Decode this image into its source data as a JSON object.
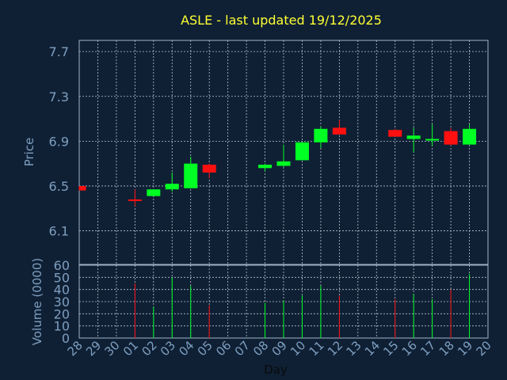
{
  "chart_data": {
    "type": "candlestick",
    "title": "ASLE - last updated 19/12/2025",
    "xlabel": "Day",
    "price_axis": {
      "label": "Price",
      "ylim": [
        5.8,
        7.8
      ],
      "ticks": [
        "6.1",
        "6.5",
        "6.9",
        "7.3",
        "7.7"
      ]
    },
    "volume_axis": {
      "label": "Volume (0000)",
      "ylim": [
        0,
        60
      ],
      "ticks": [
        "0",
        "10",
        "20",
        "30",
        "40",
        "50",
        "60"
      ]
    },
    "days": [
      "28",
      "29",
      "30",
      "01",
      "02",
      "03",
      "04",
      "05",
      "06",
      "07",
      "08",
      "09",
      "10",
      "11",
      "12",
      "13",
      "14",
      "15",
      "16",
      "17",
      "18",
      "19",
      "20"
    ],
    "candles": [
      {
        "day": "28",
        "open": 6.5,
        "close": 6.46,
        "high": 6.5,
        "low": 6.46,
        "volume": null
      },
      {
        "day": "01",
        "open": 6.38,
        "close": 6.37,
        "high": 6.47,
        "low": 6.32,
        "volume": 45
      },
      {
        "day": "02",
        "open": 6.41,
        "close": 6.47,
        "high": 6.47,
        "low": 6.41,
        "volume": 26
      },
      {
        "day": "03",
        "open": 6.47,
        "close": 6.52,
        "high": 6.62,
        "low": 6.45,
        "volume": 50
      },
      {
        "day": "04",
        "open": 6.48,
        "close": 6.7,
        "high": 6.76,
        "low": 6.48,
        "volume": 43
      },
      {
        "day": "05",
        "open": 6.69,
        "close": 6.62,
        "high": 6.7,
        "low": 6.57,
        "volume": 27
      },
      {
        "day": "08",
        "open": 6.66,
        "close": 6.69,
        "high": 6.7,
        "low": 6.63,
        "volume": 29
      },
      {
        "day": "09",
        "open": 6.68,
        "close": 6.72,
        "high": 6.87,
        "low": 6.67,
        "volume": 31
      },
      {
        "day": "10",
        "open": 6.73,
        "close": 6.89,
        "high": 6.89,
        "low": 6.73,
        "volume": 35
      },
      {
        "day": "11",
        "open": 6.89,
        "close": 7.01,
        "high": 7.03,
        "low": 6.84,
        "volume": 43
      },
      {
        "day": "12",
        "open": 7.02,
        "close": 6.96,
        "high": 7.09,
        "low": 6.96,
        "volume": 35
      },
      {
        "day": "15",
        "open": 7.0,
        "close": 6.94,
        "high": 7.01,
        "low": 6.94,
        "volume": 32
      },
      {
        "day": "16",
        "open": 6.92,
        "close": 6.95,
        "high": 7.02,
        "low": 6.8,
        "volume": 36
      },
      {
        "day": "17",
        "open": 6.91,
        "close": 6.92,
        "high": 7.05,
        "low": 6.86,
        "volume": 32
      },
      {
        "day": "18",
        "open": 6.99,
        "close": 6.87,
        "high": 7.02,
        "low": 6.86,
        "volume": 40
      },
      {
        "day": "19",
        "open": 6.87,
        "close": 7.01,
        "high": 7.05,
        "low": 6.87,
        "volume": 53
      }
    ],
    "grid": true,
    "colors": {
      "background": "#0f2035",
      "title": "#ffff33",
      "axis_text": "#7f9fbf",
      "grid": "#b8c4d0",
      "up": "#00ff22",
      "down": "#ff1010",
      "frame": "#9fb3c8"
    }
  }
}
